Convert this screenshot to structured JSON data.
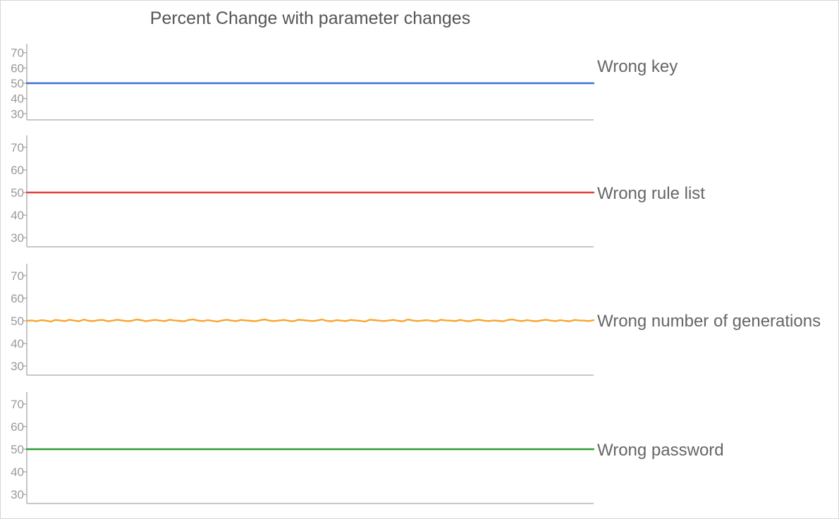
{
  "chart_data": {
    "type": "line",
    "title": "Percent Change with parameter changes",
    "layout": "small-multiples",
    "yticks": [
      30,
      40,
      50,
      60,
      70
    ],
    "ylim": [
      26,
      74
    ],
    "x_points": 120,
    "series": [
      {
        "name": "Wrong key",
        "color": "#3b6fd8",
        "values": [
          50
        ]
      },
      {
        "name": "Wrong rule list",
        "color": "#e0443a",
        "values": [
          50
        ]
      },
      {
        "name": "Wrong number of generations",
        "color": "#f7a52c",
        "values": [
          50.0,
          50.2,
          49.8,
          50.3,
          50.1,
          49.7,
          50.4,
          50.2,
          49.9,
          50.5,
          50.1,
          49.8,
          50.6,
          50.0,
          49.9,
          50.3,
          50.4,
          49.8,
          50.1,
          50.5,
          50.2,
          49.9,
          50.0,
          50.6,
          50.3,
          49.8,
          50.2,
          50.4,
          50.1,
          49.9,
          50.5,
          50.2,
          50.0,
          49.8,
          50.4,
          50.6,
          50.1,
          49.9,
          50.3,
          50.0,
          49.7,
          50.2,
          50.5,
          50.1,
          49.9,
          50.4,
          50.2,
          50.0,
          49.8,
          50.3,
          50.6,
          50.1,
          49.9,
          50.2,
          50.4,
          50.0,
          49.8,
          50.5,
          50.3,
          50.1,
          49.9,
          50.2,
          50.6,
          50.0,
          49.8,
          50.3,
          50.1,
          49.9,
          50.4,
          50.2,
          50.0,
          49.7,
          50.5,
          50.3,
          50.1,
          49.9,
          50.2,
          50.4,
          50.0,
          49.8,
          50.6,
          50.2,
          49.9,
          50.1,
          50.3,
          50.0,
          49.8,
          50.5,
          50.2,
          50.1,
          49.9,
          50.4,
          50.0,
          49.8,
          50.3,
          50.5,
          50.1,
          49.9,
          50.2,
          50.0,
          49.8,
          50.4,
          50.6,
          50.1,
          49.9,
          50.3,
          50.0,
          49.8,
          50.2,
          50.5,
          50.1,
          49.9,
          50.3,
          50.0,
          49.8,
          50.4,
          50.2,
          50.1,
          49.9,
          50.3
        ]
      },
      {
        "name": "Wrong password",
        "color": "#2e9b33",
        "values": [
          50
        ]
      }
    ]
  }
}
